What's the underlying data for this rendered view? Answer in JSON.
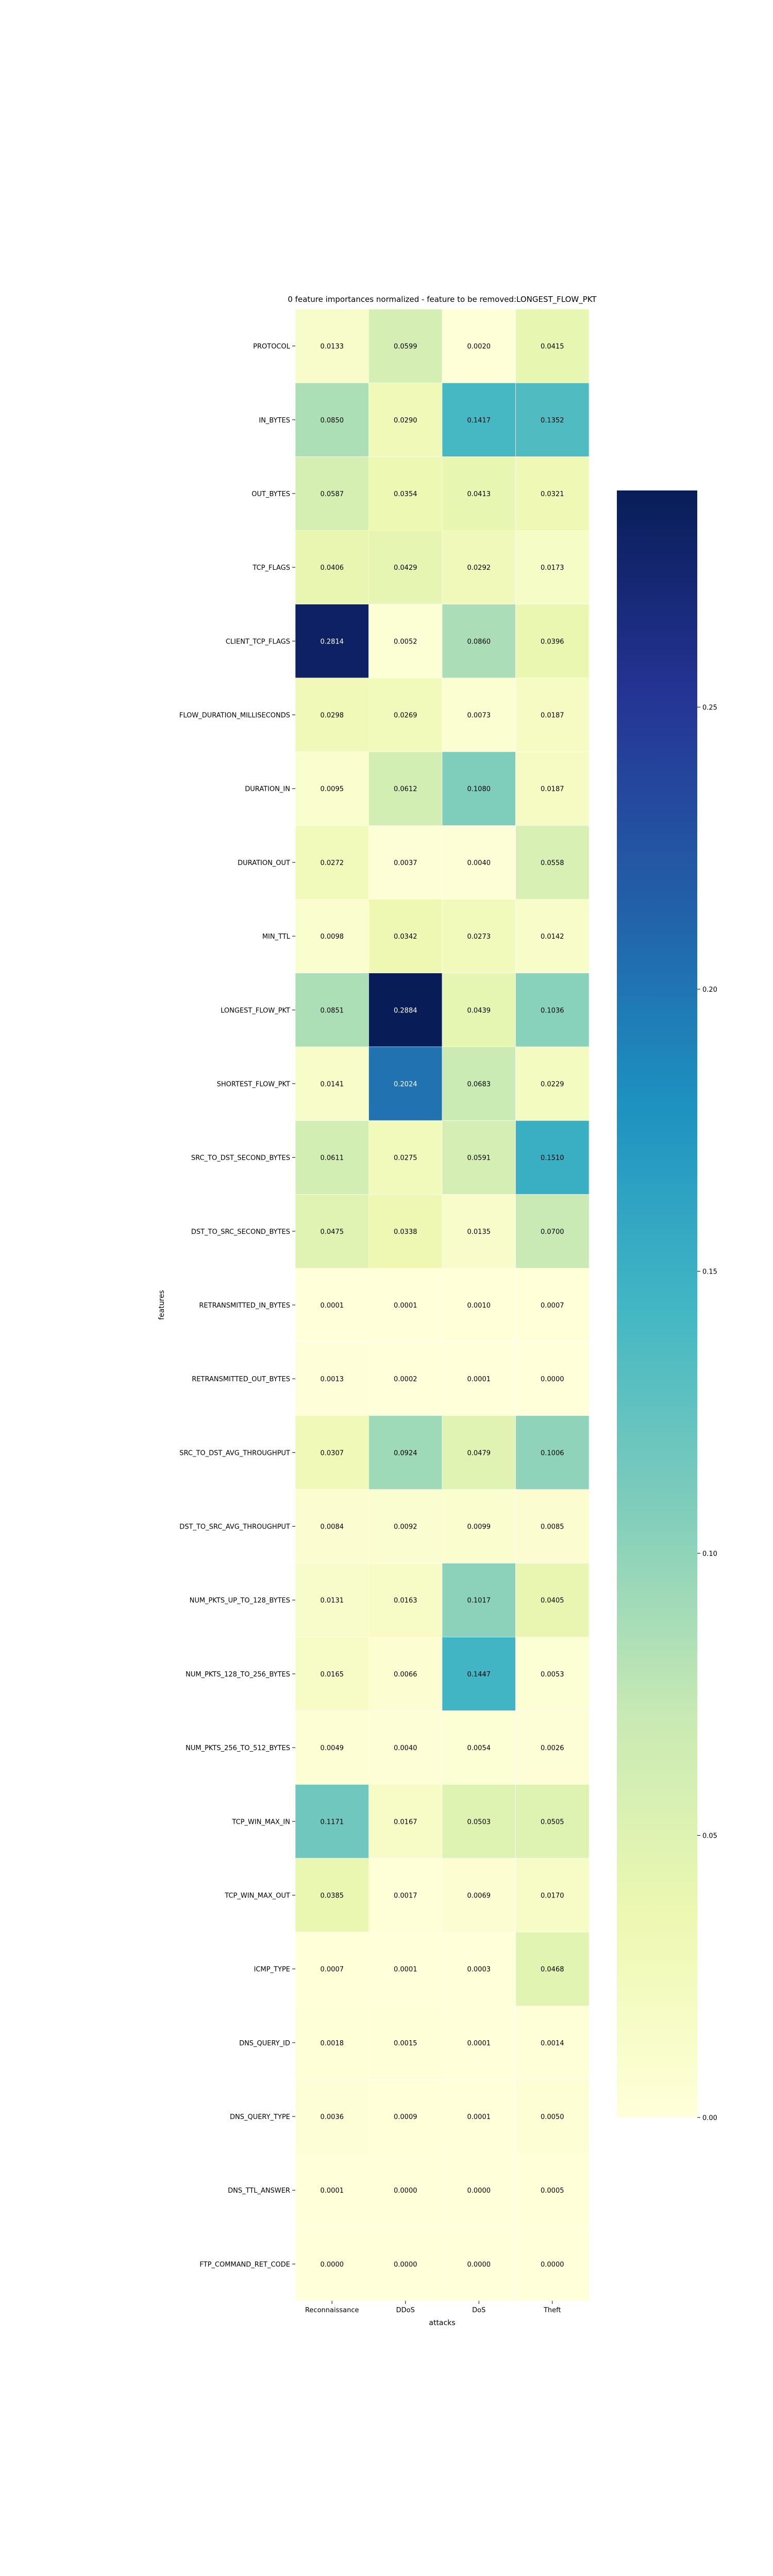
{
  "chart_data": {
    "type": "heatmap",
    "title": "0 feature importances normalized - feature to be removed:LONGEST_FLOW_PKT",
    "xlabel": "attacks",
    "ylabel": "features",
    "columns": [
      "Reconnaissance",
      "DDoS",
      "DoS",
      "Theft"
    ],
    "rows": [
      "PROTOCOL",
      "IN_BYTES",
      "OUT_BYTES",
      "TCP_FLAGS",
      "CLIENT_TCP_FLAGS",
      "FLOW_DURATION_MILLISECONDS",
      "DURATION_IN",
      "DURATION_OUT",
      "MIN_TTL",
      "LONGEST_FLOW_PKT",
      "SHORTEST_FLOW_PKT",
      "SRC_TO_DST_SECOND_BYTES",
      "DST_TO_SRC_SECOND_BYTES",
      "RETRANSMITTED_IN_BYTES",
      "RETRANSMITTED_OUT_BYTES",
      "SRC_TO_DST_AVG_THROUGHPUT",
      "DST_TO_SRC_AVG_THROUGHPUT",
      "NUM_PKTS_UP_TO_128_BYTES",
      "NUM_PKTS_128_TO_256_BYTES",
      "NUM_PKTS_256_TO_512_BYTES",
      "TCP_WIN_MAX_IN",
      "TCP_WIN_MAX_OUT",
      "ICMP_TYPE",
      "DNS_QUERY_ID",
      "DNS_QUERY_TYPE",
      "DNS_TTL_ANSWER",
      "FTP_COMMAND_RET_CODE"
    ],
    "values": [
      [
        0.0133,
        0.0599,
        0.002,
        0.0415
      ],
      [
        0.085,
        0.029,
        0.1417,
        0.1352
      ],
      [
        0.0587,
        0.0354,
        0.0413,
        0.0321
      ],
      [
        0.0406,
        0.0429,
        0.0292,
        0.0173
      ],
      [
        0.2814,
        0.0052,
        0.086,
        0.0396
      ],
      [
        0.0298,
        0.0269,
        0.0073,
        0.0187
      ],
      [
        0.0095,
        0.0612,
        0.108,
        0.0187
      ],
      [
        0.0272,
        0.0037,
        0.004,
        0.0558
      ],
      [
        0.0098,
        0.0342,
        0.0273,
        0.0142
      ],
      [
        0.0851,
        0.2884,
        0.0439,
        0.1036
      ],
      [
        0.0141,
        0.2024,
        0.0683,
        0.0229
      ],
      [
        0.0611,
        0.0275,
        0.0591,
        0.151
      ],
      [
        0.0475,
        0.0338,
        0.0135,
        0.07
      ],
      [
        0.0001,
        0.0001,
        0.001,
        0.0007
      ],
      [
        0.0013,
        0.0002,
        0.0001,
        0.0
      ],
      [
        0.0307,
        0.0924,
        0.0479,
        0.1006
      ],
      [
        0.0084,
        0.0092,
        0.0099,
        0.0085
      ],
      [
        0.0131,
        0.0163,
        0.1017,
        0.0405
      ],
      [
        0.0165,
        0.0066,
        0.1447,
        0.0053
      ],
      [
        0.0049,
        0.004,
        0.0054,
        0.0026
      ],
      [
        0.1171,
        0.0167,
        0.0503,
        0.0505
      ],
      [
        0.0385,
        0.0017,
        0.0069,
        0.017
      ],
      [
        0.0007,
        0.0001,
        0.0003,
        0.0468
      ],
      [
        0.0018,
        0.0015,
        0.0001,
        0.0014
      ],
      [
        0.0036,
        0.0009,
        0.0001,
        0.005
      ],
      [
        0.0001,
        0.0,
        0.0,
        0.0005
      ],
      [
        0.0,
        0.0,
        0.0,
        0.0
      ]
    ],
    "colormap": "YlGnBu",
    "vmin": 0.0,
    "vmax": 0.2884,
    "colorbar": {
      "ticks": [
        0.0,
        0.05,
        0.1,
        0.15,
        0.2,
        0.25
      ],
      "tick_labels": [
        "0.00",
        "0.05",
        "0.10",
        "0.15",
        "0.20",
        "0.25"
      ],
      "placement": "right"
    }
  }
}
